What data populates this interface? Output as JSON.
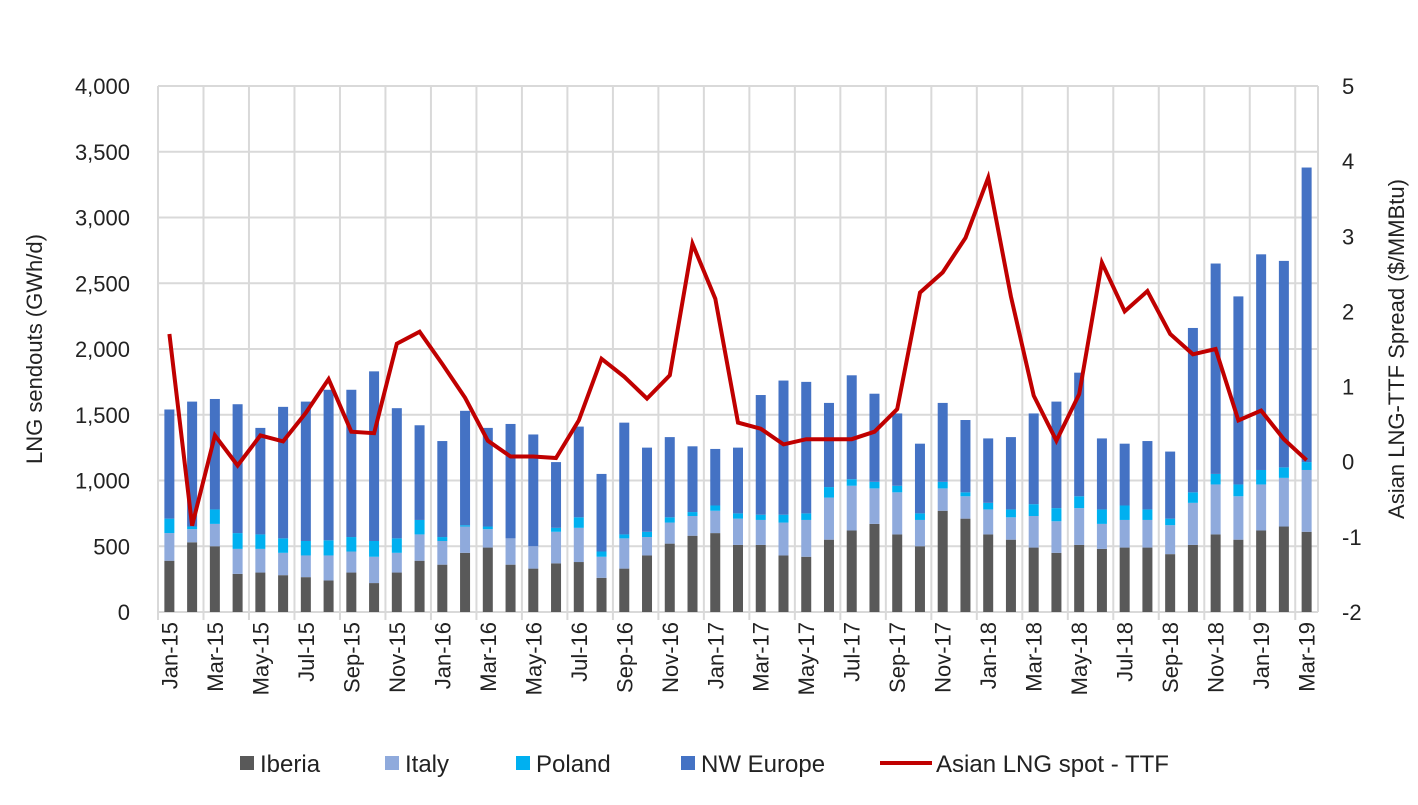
{
  "chart_data": {
    "type": "bar",
    "subtype": "stacked bar with line on secondary axis",
    "x_tick_labels": [
      "Jan-15",
      "Mar-15",
      "May-15",
      "Jul-15",
      "Sep-15",
      "Nov-15",
      "Jan-16",
      "Mar-16",
      "May-16",
      "Jul-16",
      "Sep-16",
      "Nov-16",
      "Jan-17",
      "Mar-17",
      "May-17",
      "Jul-17",
      "Sep-17",
      "Nov-17",
      "Jan-18",
      "Mar-18",
      "May-18",
      "Jul-18",
      "Sep-18",
      "Nov-18",
      "Jan-19",
      "Mar-19"
    ],
    "x_tick_every": 2,
    "ylabel": "LNG sendouts (GWh/d)",
    "ylim": [
      0,
      4000
    ],
    "yticks": [
      0,
      500,
      1000,
      1500,
      2000,
      2500,
      3000,
      3500,
      4000
    ],
    "ytick_labels": [
      "0",
      "500",
      "1,000",
      "1,500",
      "2,000",
      "2,500",
      "3,000",
      "3,500",
      "4,000"
    ],
    "y2label": "Asian LNG-TTF Spread ($/MMBtu)",
    "y2lim": [
      -2,
      5
    ],
    "y2ticks": [
      -2,
      -1,
      0,
      1,
      2,
      3,
      4,
      5
    ],
    "y2tick_labels": [
      "-2",
      "-1",
      "0",
      "1",
      "2",
      "3",
      "4",
      "5"
    ],
    "grid": true,
    "legend_position": "bottom",
    "series": [
      {
        "name": "Iberia",
        "kind": "bar",
        "color": "#595959",
        "values": [
          390,
          530,
          500,
          290,
          300,
          280,
          265,
          240,
          300,
          220,
          300,
          390,
          360,
          450,
          490,
          360,
          330,
          370,
          380,
          260,
          330,
          430,
          520,
          580,
          600,
          510,
          510,
          430,
          420,
          550,
          620,
          670,
          590,
          500,
          770,
          710,
          590,
          550,
          490,
          450,
          510,
          480,
          490,
          490,
          440,
          510,
          590,
          550,
          620,
          650,
          610
        ]
      },
      {
        "name": "Italy",
        "kind": "bar",
        "color": "#8faadc",
        "values": [
          210,
          100,
          170,
          190,
          180,
          170,
          165,
          190,
          160,
          200,
          150,
          200,
          180,
          200,
          140,
          200,
          170,
          240,
          260,
          160,
          230,
          140,
          160,
          150,
          170,
          200,
          190,
          250,
          280,
          320,
          340,
          270,
          320,
          200,
          170,
          170,
          190,
          170,
          240,
          240,
          280,
          190,
          210,
          210,
          220,
          320,
          380,
          330,
          350,
          370,
          470
        ]
      },
      {
        "name": "Poland",
        "kind": "bar",
        "color": "#00b0f0",
        "values": [
          110,
          20,
          110,
          120,
          110,
          110,
          110,
          115,
          110,
          120,
          110,
          110,
          30,
          10,
          20,
          0,
          0,
          30,
          80,
          40,
          30,
          40,
          40,
          30,
          40,
          40,
          40,
          60,
          50,
          80,
          50,
          50,
          50,
          50,
          50,
          30,
          50,
          60,
          90,
          100,
          90,
          110,
          110,
          80,
          50,
          80,
          80,
          90,
          110,
          80,
          60
        ]
      },
      {
        "name": "NW Europe",
        "kind": "bar",
        "color": "#4472c4",
        "values": [
          830,
          950,
          840,
          980,
          810,
          1000,
          1060,
          1145,
          1120,
          1290,
          990,
          720,
          730,
          870,
          750,
          870,
          850,
          500,
          690,
          590,
          850,
          640,
          610,
          500,
          430,
          500,
          910,
          1020,
          1000,
          640,
          790,
          670,
          550,
          530,
          600,
          550,
          490,
          550,
          690,
          810,
          940,
          540,
          470,
          520,
          510,
          1250,
          1600,
          1430,
          1640,
          1570,
          2240
        ]
      },
      {
        "name": "Asian LNG spot - TTF",
        "kind": "line",
        "axis": "right",
        "color": "#c00000",
        "values": [
          1.7,
          -0.85,
          0.35,
          -0.05,
          0.35,
          0.27,
          0.65,
          1.1,
          0.4,
          0.38,
          1.57,
          1.73,
          1.3,
          0.85,
          0.28,
          0.07,
          0.07,
          0.05,
          0.55,
          1.37,
          1.13,
          0.84,
          1.15,
          2.9,
          2.17,
          0.52,
          0.44,
          0.23,
          0.3,
          0.3,
          0.3,
          0.4,
          0.7,
          2.25,
          2.52,
          2.98,
          3.78,
          2.2,
          0.88,
          0.28,
          0.9,
          2.65,
          2.0,
          2.27,
          1.7,
          1.43,
          1.5,
          0.55,
          0.68,
          0.3,
          0.02
        ]
      }
    ]
  }
}
